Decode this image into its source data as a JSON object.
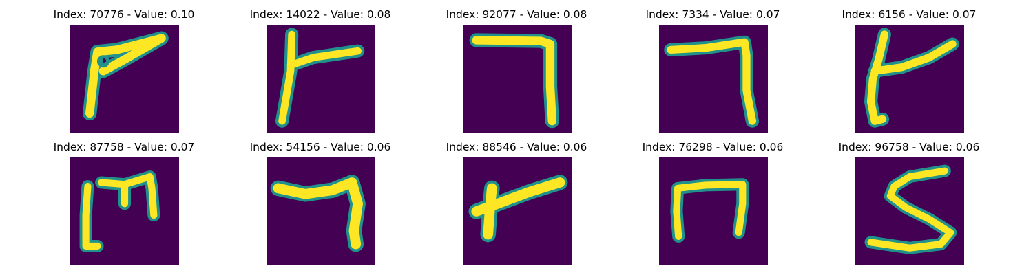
{
  "colors": {
    "background": "#440154",
    "mid": "#21918c",
    "stroke": "#fde725"
  },
  "panels": [
    {
      "title": "Index: 70776 - Value: 0.10",
      "glyph": "sevenish-with-loop"
    },
    {
      "title": "Index: 14022 - Value: 0.08",
      "glyph": "t-shape"
    },
    {
      "title": "Index: 92077 - Value: 0.08",
      "glyph": "seven"
    },
    {
      "title": "Index: 7334 - Value: 0.07",
      "glyph": "seven"
    },
    {
      "title": "Index: 6156 - Value: 0.07",
      "glyph": "t-shape"
    },
    {
      "title": "Index: 87758 - Value: 0.07",
      "glyph": "m-shape"
    },
    {
      "title": "Index: 54156 - Value: 0.06",
      "glyph": "seven"
    },
    {
      "title": "Index: 88546 - Value: 0.06",
      "glyph": "t-shape"
    },
    {
      "title": "Index: 76298 - Value: 0.06",
      "glyph": "n-shape"
    },
    {
      "title": "Index: 96758 - Value: 0.06",
      "glyph": "s-shape"
    }
  ]
}
